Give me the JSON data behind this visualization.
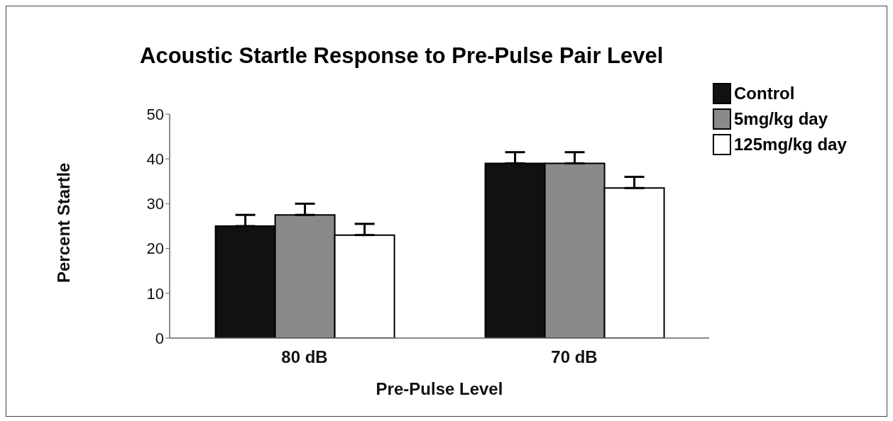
{
  "chart_data": {
    "type": "bar",
    "title": "Acoustic Startle Response to Pre-Pulse Pair Level",
    "xlabel": "Pre-Pulse Level",
    "ylabel": "Percent Startle",
    "categories": [
      "80 dB",
      "70 dB"
    ],
    "series": [
      {
        "name": "Control",
        "color": "#111111",
        "values": [
          25,
          39
        ],
        "errors": [
          [
            25,
            27.5
          ],
          [
            39,
            41.5
          ]
        ]
      },
      {
        "name": "5mg/kg day",
        "color": "#8a8a8a",
        "values": [
          27.5,
          39
        ],
        "errors": [
          [
            27.5,
            30
          ],
          [
            39,
            41.5
          ]
        ]
      },
      {
        "name": "125mg/kg day",
        "color": "#ffffff",
        "values": [
          23,
          33.5
        ],
        "errors": [
          [
            23,
            25.5
          ],
          [
            33.5,
            36
          ]
        ]
      }
    ],
    "ylim": [
      0,
      50
    ],
    "yticks": [
      0,
      10,
      20,
      30,
      40,
      50
    ],
    "legend": "top right"
  }
}
